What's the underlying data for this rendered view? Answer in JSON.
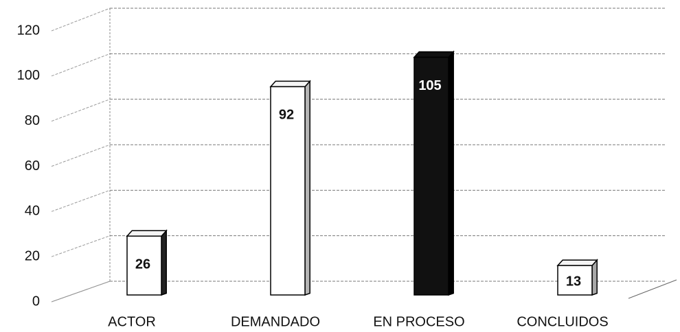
{
  "chart_data": {
    "type": "bar3d",
    "categories": [
      "ACTOR",
      "DEMANDADO",
      "EN PROCESO",
      "CONCLUIDOS"
    ],
    "values": [
      26,
      92,
      105,
      13
    ],
    "colors": [
      "#ffffff",
      "#ffffff",
      "#111111",
      "#ffffff"
    ],
    "side_colors": [
      "#222222",
      "#b5b5b5",
      "#000000",
      "#a8a8a8"
    ],
    "ylim": [
      0,
      120
    ],
    "yticks": [
      0,
      20,
      40,
      60,
      80,
      100,
      120
    ],
    "grid": true
  }
}
